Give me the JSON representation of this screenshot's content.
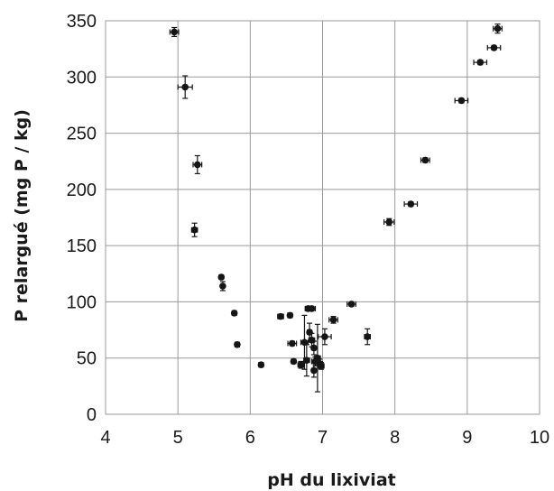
{
  "chart_data": {
    "type": "scatter",
    "title": "",
    "xlabel": "pH du lixiviat",
    "ylabel": "P relargué (mg P / kg)",
    "xlim": [
      4,
      10
    ],
    "ylim": [
      0,
      350
    ],
    "x_ticks": [
      "4",
      "5",
      "6",
      "7",
      "8",
      "9",
      "10"
    ],
    "y_ticks": [
      "0",
      "50",
      "100",
      "150",
      "200",
      "250",
      "300",
      "350"
    ],
    "grid": true,
    "series": [
      {
        "points": [
          {
            "x": 4.95,
            "y": 340,
            "xerr": 0.06,
            "yerr": 4
          },
          {
            "x": 5.1,
            "y": 291,
            "xerr": 0.1,
            "yerr": 10
          },
          {
            "x": 5.27,
            "y": 222,
            "xerr": 0.06,
            "yerr": 8
          },
          {
            "x": 5.23,
            "y": 164,
            "xerr": 0.04,
            "yerr": 6
          },
          {
            "x": 5.6,
            "y": 122,
            "xerr": 0.02,
            "yerr": 2
          },
          {
            "x": 5.62,
            "y": 114,
            "xerr": 0.02,
            "yerr": 4
          },
          {
            "x": 5.78,
            "y": 90,
            "xerr": 0.02,
            "yerr": 2
          },
          {
            "x": 5.82,
            "y": 62,
            "xerr": 0.03,
            "yerr": 2
          },
          {
            "x": 6.15,
            "y": 44,
            "xerr": 0.03,
            "yerr": 2
          },
          {
            "x": 6.42,
            "y": 87,
            "xerr": 0.04,
            "yerr": 2
          },
          {
            "x": 6.55,
            "y": 88,
            "xerr": 0.03,
            "yerr": 2
          },
          {
            "x": 6.58,
            "y": 63,
            "xerr": 0.06,
            "yerr": 2
          },
          {
            "x": 6.6,
            "y": 47,
            "xerr": 0.03,
            "yerr": 2
          },
          {
            "x": 6.7,
            "y": 44,
            "xerr": 0.04,
            "yerr": 3
          },
          {
            "x": 6.75,
            "y": 64,
            "xerr": 0.05,
            "yerr": 24
          },
          {
            "x": 6.78,
            "y": 48,
            "xerr": 0.04,
            "yerr": 14
          },
          {
            "x": 6.8,
            "y": 94,
            "xerr": 0.04,
            "yerr": 2
          },
          {
            "x": 6.82,
            "y": 73,
            "xerr": 0.03,
            "yerr": 8
          },
          {
            "x": 6.85,
            "y": 94,
            "xerr": 0.05,
            "yerr": 2
          },
          {
            "x": 6.85,
            "y": 66,
            "xerr": 0.04,
            "yerr": 6
          },
          {
            "x": 6.88,
            "y": 59,
            "xerr": 0.03,
            "yerr": 6
          },
          {
            "x": 6.9,
            "y": 47,
            "xerr": 0.05,
            "yerr": 4
          },
          {
            "x": 6.88,
            "y": 39,
            "xerr": 0.03,
            "yerr": 6
          },
          {
            "x": 6.93,
            "y": 50,
            "xerr": 0.04,
            "yerr": 30
          },
          {
            "x": 6.96,
            "y": 45,
            "xerr": 0.04,
            "yerr": 4
          },
          {
            "x": 6.98,
            "y": 43,
            "xerr": 0.04,
            "yerr": 3
          },
          {
            "x": 7.03,
            "y": 69,
            "xerr": 0.09,
            "yerr": 7
          },
          {
            "x": 7.15,
            "y": 84,
            "xerr": 0.06,
            "yerr": 3
          },
          {
            "x": 7.4,
            "y": 98,
            "xerr": 0.06,
            "yerr": 2
          },
          {
            "x": 7.62,
            "y": 69,
            "xerr": 0.04,
            "yerr": 7
          },
          {
            "x": 7.92,
            "y": 171,
            "xerr": 0.07,
            "yerr": 3
          },
          {
            "x": 8.22,
            "y": 187,
            "xerr": 0.09,
            "yerr": 2
          },
          {
            "x": 8.42,
            "y": 226,
            "xerr": 0.06,
            "yerr": 2
          },
          {
            "x": 8.92,
            "y": 279,
            "xerr": 0.09,
            "yerr": 2
          },
          {
            "x": 9.18,
            "y": 313,
            "xerr": 0.09,
            "yerr": 2
          },
          {
            "x": 9.37,
            "y": 326,
            "xerr": 0.09,
            "yerr": 2
          },
          {
            "x": 9.42,
            "y": 343,
            "xerr": 0.06,
            "yerr": 4
          }
        ]
      }
    ]
  }
}
